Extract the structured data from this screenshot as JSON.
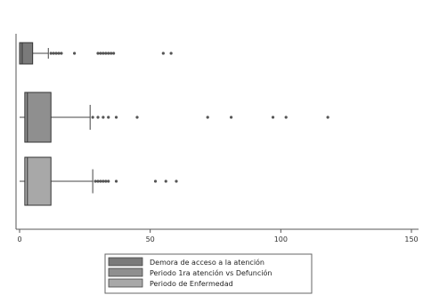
{
  "chart_data": {
    "type": "box",
    "orientation": "horizontal",
    "xlim": [
      0,
      150
    ],
    "xticks": [
      0,
      50,
      100,
      150
    ],
    "xtick_labels": [
      "0",
      "50",
      "100",
      "150"
    ],
    "grid": false,
    "legend_position": "bottom",
    "series": [
      {
        "name": "Demora de acceso a la atención",
        "color": "#7a7a7a",
        "whisker_low": 0,
        "q1": 0,
        "median": 1,
        "q3": 5,
        "whisker_high": 11,
        "outliers": [
          12,
          13,
          14,
          15,
          16,
          21,
          30,
          31,
          32,
          33,
          34,
          35,
          36,
          55,
          58
        ]
      },
      {
        "name": "Periodo 1ra atención vs Defunción",
        "color": "#8f8f8f",
        "whisker_low": 0,
        "q1": 2,
        "median": 3,
        "q3": 12,
        "whisker_high": 27,
        "outliers": [
          28,
          30,
          32,
          34,
          37,
          45,
          72,
          81,
          97,
          102,
          118
        ]
      },
      {
        "name": "Periodo de Enfermedad",
        "color": "#a8a8a8",
        "whisker_low": 0,
        "q1": 2,
        "median": 3,
        "q3": 12,
        "whisker_high": 28,
        "outliers": [
          29,
          30,
          31,
          32,
          33,
          34,
          37,
          52,
          56,
          60
        ]
      }
    ]
  }
}
